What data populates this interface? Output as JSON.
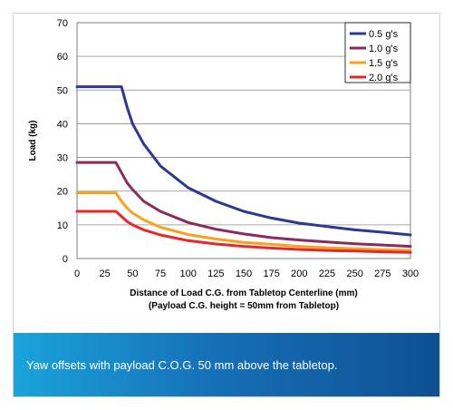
{
  "chart_data": {
    "type": "line",
    "xlabel": "Distance of Load C.G. from Tabletop Centerline (mm)",
    "xlabel2": "(Payload C.G. height = 50mm from Tabletop)",
    "ylabel": "Load (kg)",
    "xlim": [
      0,
      300
    ],
    "ylim": [
      0,
      70
    ],
    "x_ticks": [
      "0",
      "25",
      "50",
      "75",
      "100",
      "125",
      "150",
      "175",
      "200",
      "225",
      "250",
      "275",
      "300"
    ],
    "y_ticks": [
      "0",
      "10",
      "20",
      "30",
      "40",
      "50",
      "60",
      "70"
    ],
    "grid": "horizontal",
    "legend_position": "top-right",
    "x": [
      0,
      25,
      35,
      40,
      45,
      50,
      60,
      75,
      100,
      125,
      150,
      175,
      200,
      225,
      250,
      275,
      300
    ],
    "series": [
      {
        "name": "0.5 g's",
        "color": "#2b3990",
        "values": [
          51,
          51,
          51,
          51,
          45,
          40,
          34,
          27.5,
          21,
          17,
          14,
          12,
          10.5,
          9.5,
          8.5,
          7.8,
          7
        ]
      },
      {
        "name": "1.0 g's",
        "color": "#8b2a5e",
        "values": [
          28.5,
          28.5,
          28.5,
          25.5,
          22.5,
          20.5,
          17,
          14,
          10.7,
          8.7,
          7.3,
          6.2,
          5.5,
          4.9,
          4.4,
          4,
          3.6
        ]
      },
      {
        "name": "1.5 g's",
        "color": "#f7a21b",
        "values": [
          19.5,
          19.5,
          19.5,
          17,
          15,
          13.5,
          11.5,
          9.3,
          7.1,
          5.8,
          4.8,
          4.2,
          3.6,
          3.2,
          2.9,
          2.6,
          2.4
        ]
      },
      {
        "name": "2.0 g's",
        "color": "#e8262b",
        "values": [
          14,
          14,
          14,
          12.5,
          11,
          10,
          8.5,
          7,
          5.3,
          4.3,
          3.6,
          3.1,
          2.7,
          2.4,
          2.2,
          2,
          1.8
        ]
      }
    ]
  },
  "caption": "Yaw offsets with payload C.O.G. 50 mm above the tabletop."
}
